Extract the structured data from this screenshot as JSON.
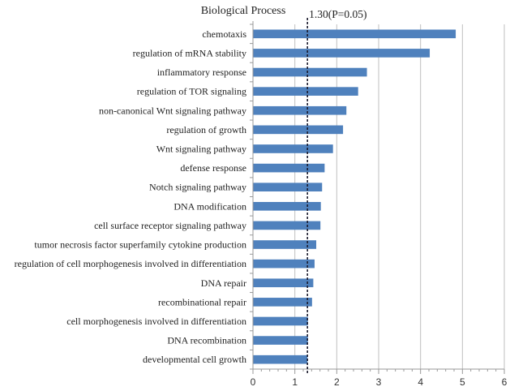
{
  "chart_data": {
    "type": "bar",
    "orientation": "horizontal",
    "title": "Biological Process",
    "xlabel": "",
    "ylabel": "",
    "xlim": [
      0,
      6
    ],
    "xticks": [
      "0",
      "1",
      "2",
      "3",
      "4",
      "5",
      "6"
    ],
    "grid": true,
    "legend": "none",
    "bar_color": "#4F81BD",
    "categories": [
      "chemotaxis",
      "regulation of mRNA stability",
      "inflammatory response",
      "regulation of TOR signaling",
      "non-canonical Wnt signaling pathway",
      "regulation of growth",
      "Wnt signaling pathway",
      "defense response",
      "Notch signaling pathway",
      "DNA modification",
      "cell surface receptor signaling pathway",
      "tumor necrosis factor superfamily cytokine production",
      "regulation of cell morphogenesis involved in differentiation",
      "DNA repair",
      "recombinational repair",
      "cell morphogenesis involved in differentiation",
      "DNA recombination",
      "developmental cell growth"
    ],
    "values": [
      4.84,
      4.22,
      2.72,
      2.51,
      2.23,
      2.15,
      1.91,
      1.71,
      1.65,
      1.62,
      1.61,
      1.51,
      1.47,
      1.44,
      1.41,
      1.31,
      1.31,
      1.3
    ],
    "reference_line": {
      "value": 1.3,
      "label": "1.30(P=0.05)",
      "style": "dashed",
      "color": "#1a1a2e"
    }
  }
}
